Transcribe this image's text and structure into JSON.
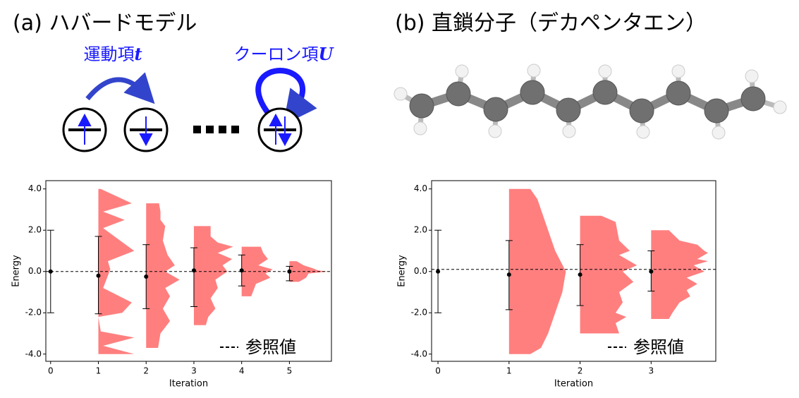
{
  "chart_data": [
    {
      "type": "violin",
      "title": "(a) ハバードモデル",
      "hopping_label": "運動項",
      "hopping_symbol": "t",
      "coulomb_label": "クーロン項",
      "coulomb_symbol": "U",
      "xlabel": "Iteration",
      "ylabel": "Energy",
      "xlim": [
        -0.1,
        5.88
      ],
      "ylim": [
        -4.35,
        4.4
      ],
      "xticks": [
        0,
        1,
        2,
        3,
        4,
        5
      ],
      "yticks": [
        {
          "value": 4,
          "label": "4.0"
        },
        {
          "value": 2,
          "label": "2.0"
        },
        {
          "value": 0,
          "label": "0.0"
        },
        {
          "value": -2,
          "label": "-2.0"
        },
        {
          "value": -4,
          "label": "-4.0"
        }
      ],
      "x": [
        0,
        1,
        2,
        3,
        4,
        5
      ],
      "means": [
        0.0,
        -0.2,
        -0.25,
        0.05,
        0.05,
        0.0
      ],
      "lower": [
        -2.0,
        -2.05,
        -1.8,
        -1.7,
        -0.7,
        -0.45
      ],
      "upper": [
        2.0,
        1.7,
        1.3,
        1.15,
        0.8,
        0.25
      ],
      "violins": [
        {
          "x": 1,
          "y": [
            4.0,
            3.3,
            2.9,
            2.5,
            2.1,
            1.0,
            0.5,
            0.1,
            -0.8,
            -1.5,
            -2.0,
            -2.2,
            -2.9,
            -3.2,
            -3.6,
            -4.0
          ],
          "width": [
            0.05,
            0.7,
            0.1,
            0.55,
            0.1,
            0.75,
            0.2,
            0.25,
            0.1,
            0.7,
            0.5,
            0.0,
            0.05,
            0.75,
            0.1,
            0.75
          ]
        },
        {
          "x": 2,
          "y": [
            3.3,
            2.9,
            2.5,
            2.2,
            1.5,
            0.8,
            0.3,
            0.0,
            -0.4,
            -0.8,
            -1.2,
            -1.8,
            -2.4,
            -3.0,
            -3.7
          ],
          "width": [
            0.27,
            0.3,
            0.3,
            0.4,
            0.35,
            0.45,
            0.6,
            0.4,
            0.7,
            0.4,
            0.5,
            0.35,
            0.5,
            0.3,
            0.25
          ]
        },
        {
          "x": 3,
          "y": [
            2.2,
            1.7,
            1.4,
            1.2,
            0.9,
            0.6,
            0.3,
            0.0,
            -0.4,
            -0.8,
            -1.3,
            -1.8,
            -2.2,
            -2.6
          ],
          "width": [
            0.35,
            0.35,
            0.5,
            0.82,
            0.5,
            0.8,
            0.6,
            0.7,
            0.45,
            0.5,
            0.35,
            0.45,
            0.3,
            0.25
          ]
        },
        {
          "x": 4,
          "y": [
            1.2,
            0.9,
            0.6,
            0.3,
            0.1,
            -0.1,
            -0.3,
            -0.6,
            -0.9,
            -1.2
          ],
          "width": [
            0.4,
            0.45,
            0.55,
            0.35,
            0.65,
            0.5,
            0.6,
            0.3,
            0.25,
            0.2
          ]
        },
        {
          "x": 5,
          "y": [
            0.5,
            0.3,
            0.15,
            0.05,
            0.0,
            -0.1,
            -0.3,
            -0.5
          ],
          "width": [
            0.15,
            0.3,
            0.5,
            0.6,
            0.8,
            0.4,
            0.35,
            0.2
          ]
        }
      ],
      "violin_color": "#ff7f7f",
      "marker_color": "#000000",
      "reference": 0.0,
      "reference_label": "参照値"
    },
    {
      "type": "violin",
      "title": "(b) 直鎖分子（デカペンタエン）",
      "xlabel": "Iteration",
      "ylabel": "Energy",
      "xlim": [
        -0.09,
        3.91
      ],
      "ylim": [
        -4.35,
        4.4
      ],
      "xticks": [
        0,
        1,
        2,
        3
      ],
      "yticks": [
        {
          "value": 4,
          "label": "4.0"
        },
        {
          "value": 2,
          "label": "2.0"
        },
        {
          "value": 0,
          "label": "0.0"
        },
        {
          "value": -2,
          "label": "-2.0"
        },
        {
          "value": -4,
          "label": "-4.0"
        }
      ],
      "x": [
        0,
        1,
        2,
        3
      ],
      "means": [
        0.0,
        -0.15,
        -0.15,
        0.0
      ],
      "lower": [
        -2.0,
        -1.85,
        -1.65,
        -0.95
      ],
      "upper": [
        2.0,
        1.5,
        1.3,
        1.0
      ],
      "violins": [
        {
          "x": 1,
          "y": [
            4.0,
            3.5,
            3.0,
            2.0,
            1.0,
            0.0,
            -1.0,
            -2.0,
            -3.0,
            -3.7,
            -4.0
          ],
          "width": [
            0.3,
            0.4,
            0.45,
            0.55,
            0.65,
            0.8,
            0.75,
            0.65,
            0.55,
            0.45,
            0.3
          ]
        },
        {
          "x": 2,
          "y": [
            2.7,
            2.4,
            1.5,
            1.0,
            0.8,
            0.3,
            0.0,
            -0.5,
            -1.0,
            -1.5,
            -2.0,
            -2.2,
            -2.5,
            -3.0
          ],
          "width": [
            0.3,
            0.5,
            0.55,
            0.7,
            0.55,
            0.8,
            0.6,
            0.75,
            0.55,
            0.6,
            0.5,
            0.65,
            0.5,
            0.55
          ]
        },
        {
          "x": 3,
          "y": [
            2.0,
            1.5,
            1.3,
            1.0,
            0.9,
            0.6,
            0.5,
            0.3,
            0.0,
            -0.3,
            -0.6,
            -0.9,
            -1.2,
            -1.5,
            -2.0,
            -2.3
          ],
          "width": [
            0.25,
            0.4,
            0.65,
            0.75,
            0.8,
            0.65,
            0.8,
            0.6,
            0.75,
            0.5,
            0.65,
            0.5,
            0.55,
            0.4,
            0.3,
            0.25
          ]
        }
      ],
      "violin_color": "#ff7f7f",
      "marker_color": "#000000",
      "reference": 0.1,
      "reference_label": "参照値"
    }
  ]
}
